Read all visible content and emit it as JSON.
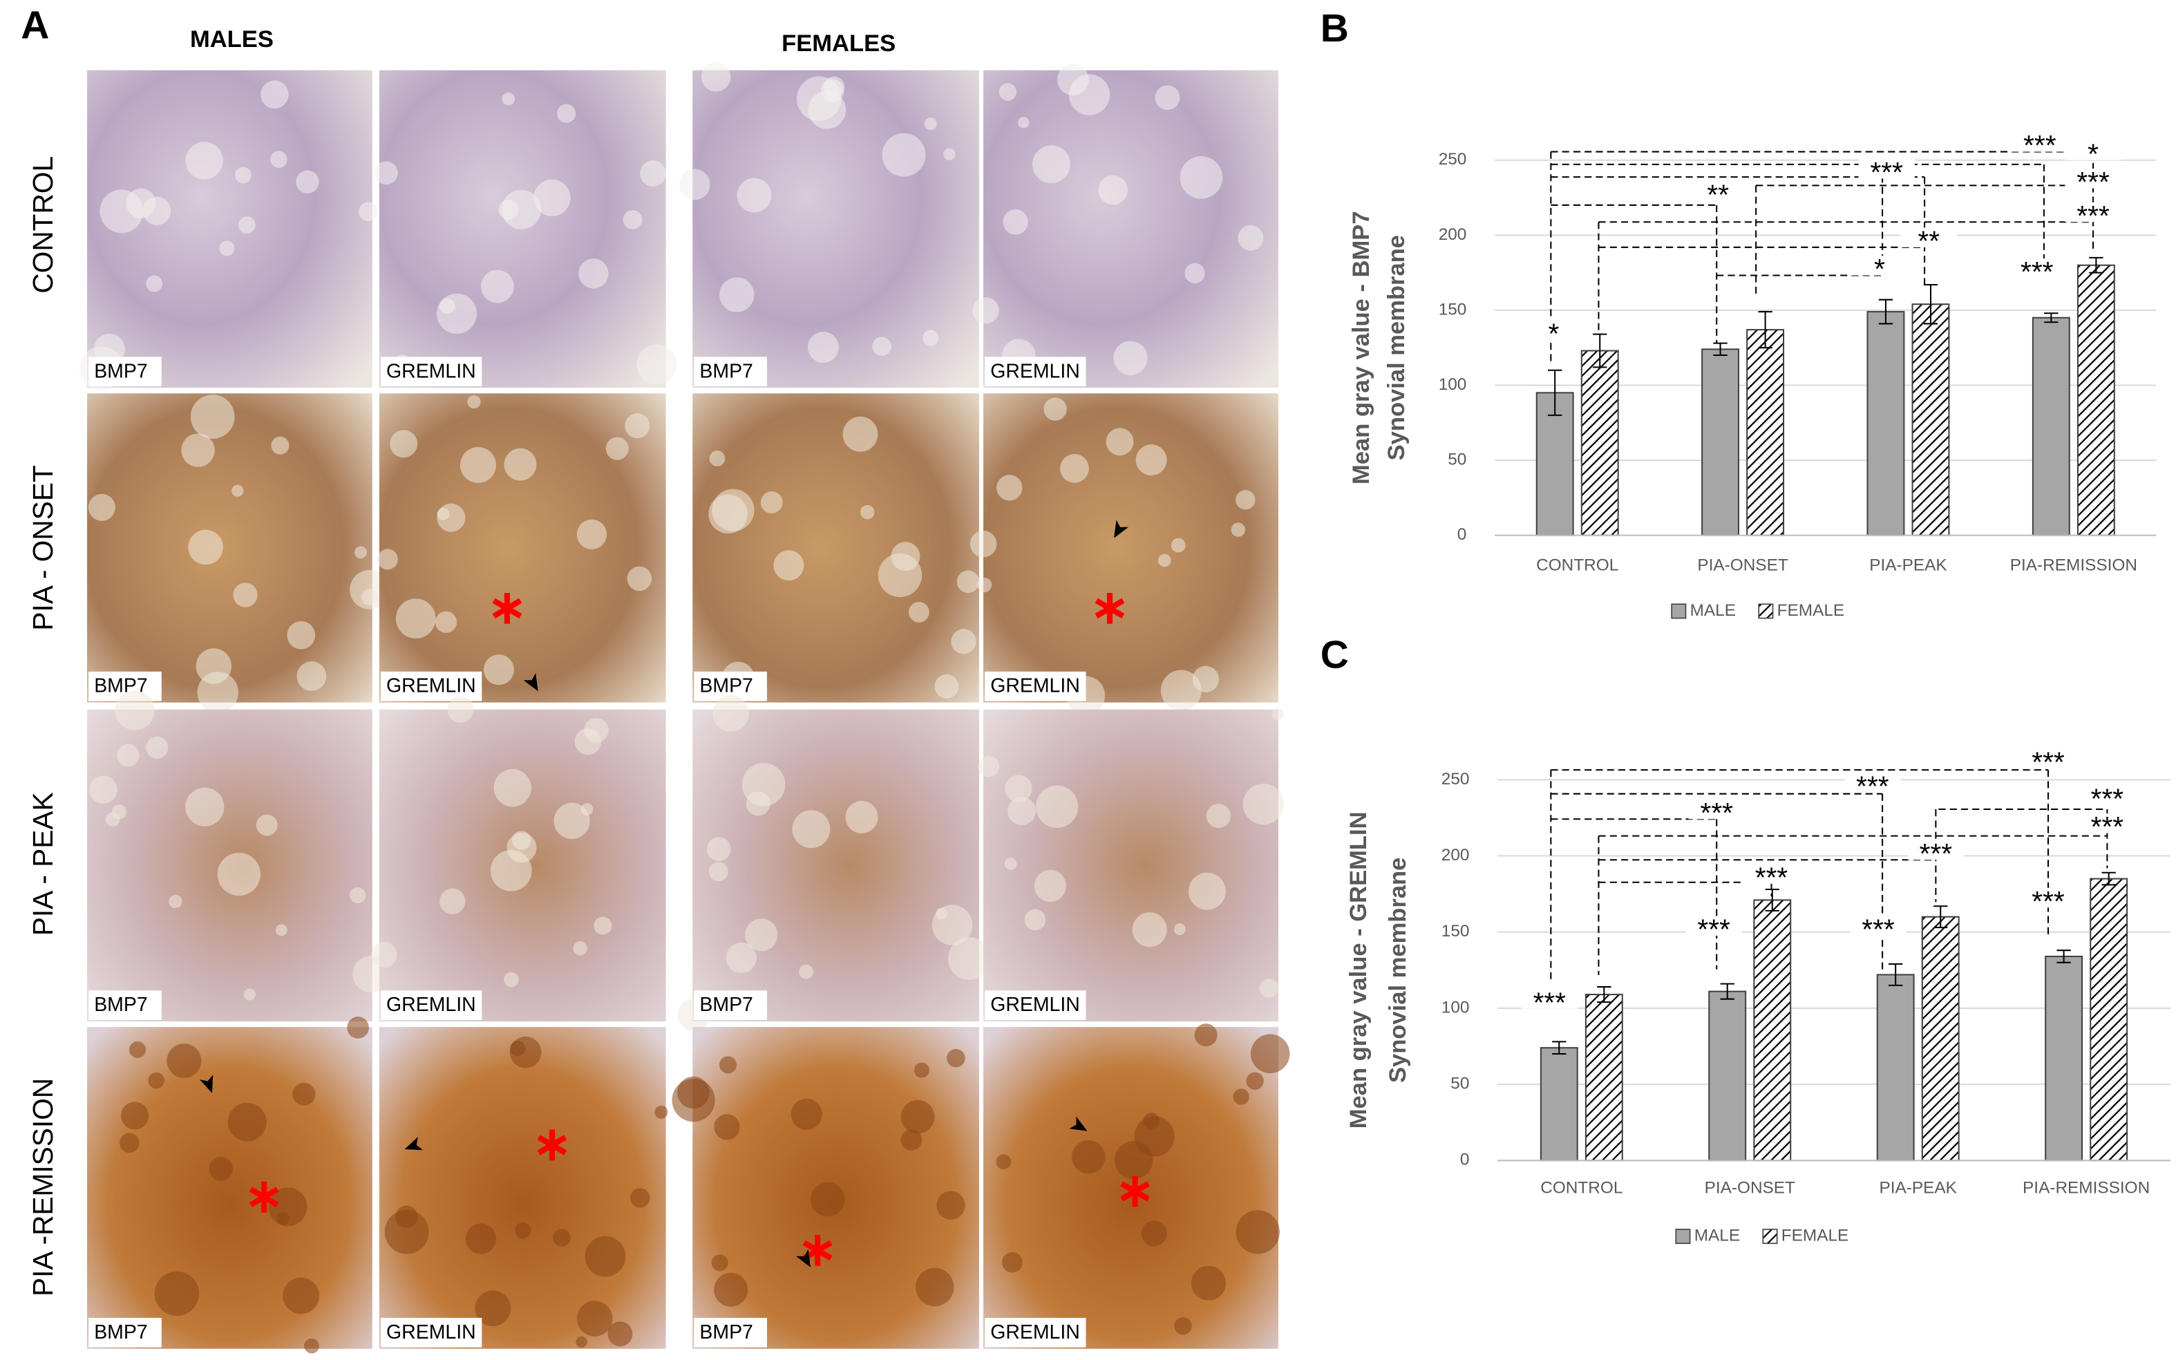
{
  "figure": {
    "panel_a": "A",
    "panel_b": "B",
    "panel_c": "C",
    "columns": [
      "MALES",
      "FEMALES"
    ],
    "rows": [
      "CONTROL",
      "PIA - ONSET",
      "PIA - PEAK",
      "PIA -REMISSION"
    ],
    "tile_labels": [
      "BMP7",
      "GREMLIN"
    ]
  },
  "chart_data": [
    {
      "type": "bar",
      "y_label": [
        "Mean gray value - BMP7",
        "Synovial membrane"
      ],
      "categories": [
        "CONTROL",
        "PIA-ONSET",
        "PIA-PEAK",
        "PIA-REMISSION"
      ],
      "series": [
        {
          "name": "MALE",
          "color": "#a6a6a6",
          "values": [
            95,
            124,
            149,
            145
          ],
          "errors": [
            15,
            4,
            8,
            3
          ]
        },
        {
          "name": "FEMALE",
          "color": "#000000",
          "values": [
            123,
            137,
            154,
            180
          ],
          "errors": [
            11,
            12,
            13,
            5
          ]
        }
      ],
      "ylim": [
        0,
        250
      ],
      "yticks": [
        0,
        50,
        100,
        150,
        200,
        250
      ],
      "grid": true,
      "legend": "bottom",
      "annotations": [
        "***",
        "*",
        "***",
        "***",
        "**",
        "***",
        "**",
        "*",
        "***",
        "*"
      ]
    },
    {
      "type": "bar",
      "y_label": [
        "Mean gray value - GREMLIN",
        "Synovial membrane"
      ],
      "categories": [
        "CONTROL",
        "PIA-ONSET",
        "PIA-PEAK",
        "PIA-REMISSION"
      ],
      "series": [
        {
          "name": "MALE",
          "color": "#a6a6a6",
          "values": [
            74,
            111,
            122,
            134
          ],
          "errors": [
            4,
            5,
            7,
            4
          ]
        },
        {
          "name": "FEMALE",
          "color": "#000000",
          "values": [
            109,
            171,
            160,
            185
          ],
          "errors": [
            5,
            7,
            7,
            4
          ]
        }
      ],
      "ylim": [
        0,
        250
      ],
      "yticks": [
        0,
        50,
        100,
        150,
        200,
        250
      ],
      "grid": true,
      "legend": "bottom",
      "annotations": [
        "***",
        "***",
        "***",
        "***",
        "***",
        "***",
        "***",
        "***",
        "***",
        "***",
        "***"
      ]
    }
  ]
}
